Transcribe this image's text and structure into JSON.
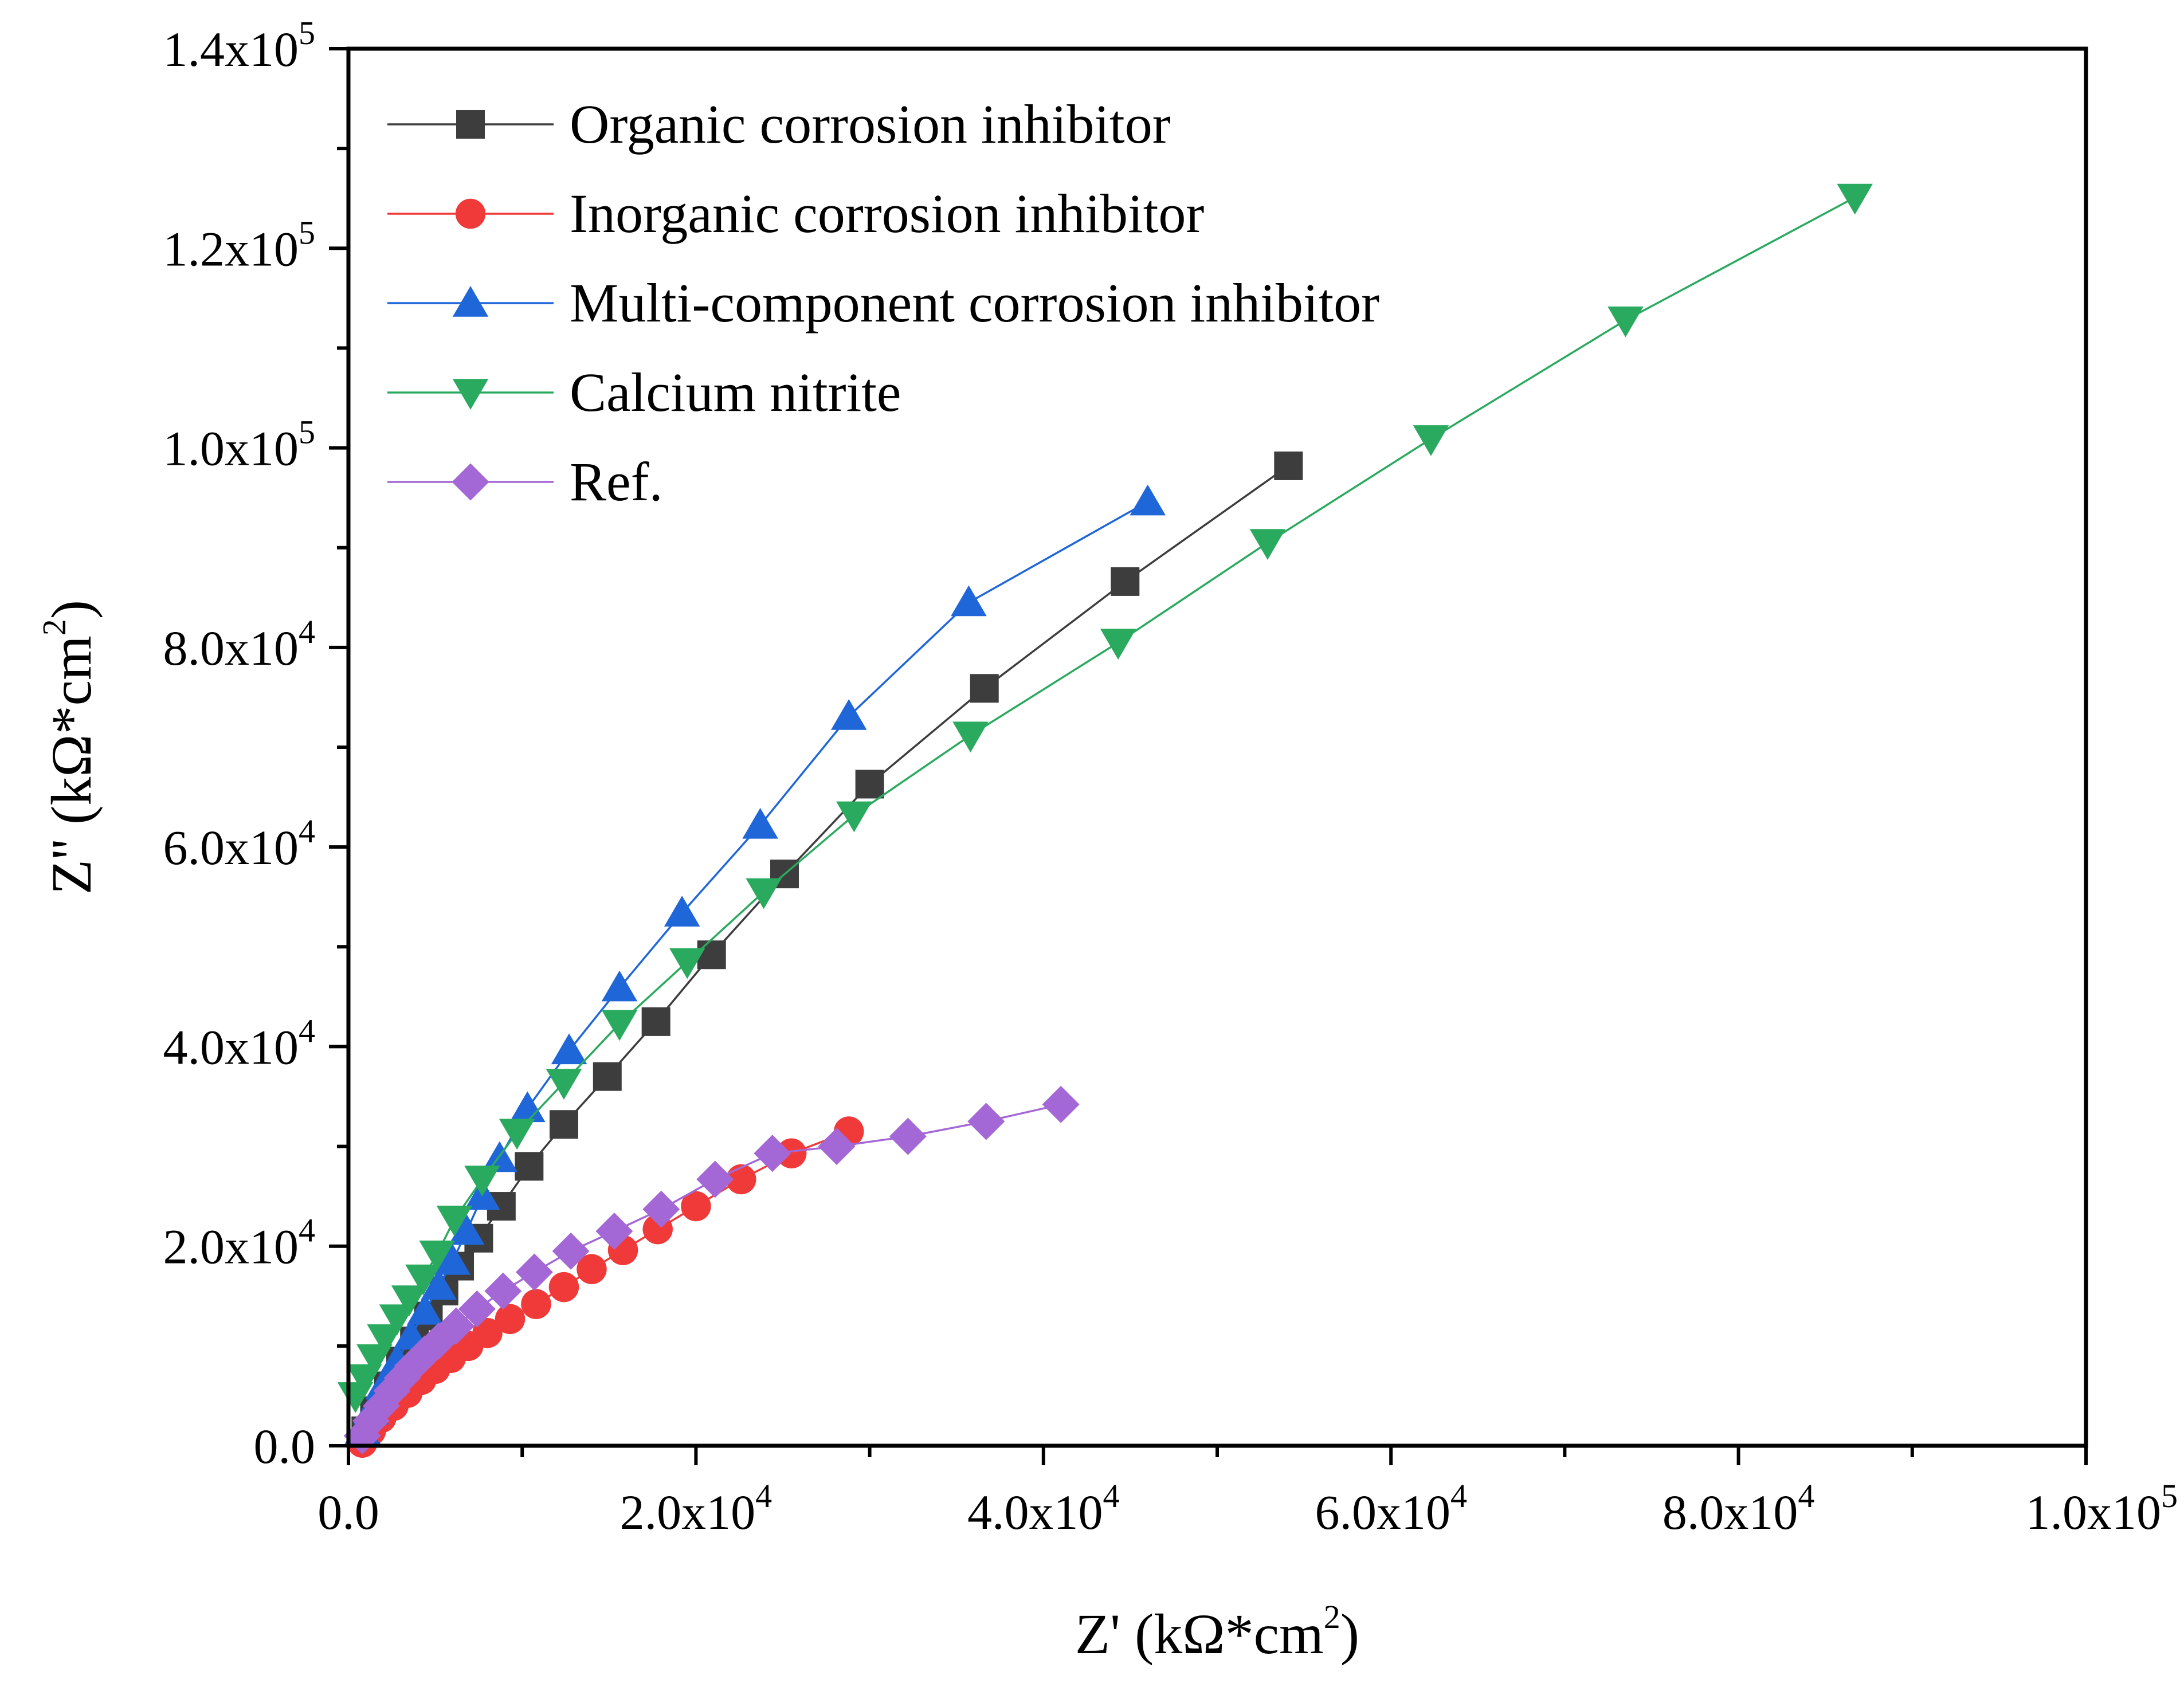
{
  "chart_data": {
    "type": "scatter",
    "title": "",
    "xlabel": {
      "prefix": "Z' (kΩ*cm",
      "sup": "2",
      "suffix": ")"
    },
    "ylabel": {
      "prefix": "Z'' (kΩ*cm",
      "sup": "2",
      "suffix": ")"
    },
    "xlim": [
      0,
      100000
    ],
    "ylim": [
      0,
      140000
    ],
    "grid": false,
    "legend_position": "top-left",
    "x_ticks": [
      {
        "value": 0,
        "mantissa": "0.0",
        "exp": ""
      },
      {
        "value": 20000,
        "mantissa": "2.0x10",
        "exp": "4"
      },
      {
        "value": 40000,
        "mantissa": "4.0x10",
        "exp": "4"
      },
      {
        "value": 60000,
        "mantissa": "6.0x10",
        "exp": "4"
      },
      {
        "value": 80000,
        "mantissa": "8.0x10",
        "exp": "4"
      },
      {
        "value": 100000,
        "mantissa": "1.0x10",
        "exp": "5"
      }
    ],
    "y_ticks": [
      {
        "value": 0,
        "mantissa": "0.0",
        "exp": ""
      },
      {
        "value": 20000,
        "mantissa": "2.0x10",
        "exp": "4"
      },
      {
        "value": 40000,
        "mantissa": "4.0x10",
        "exp": "4"
      },
      {
        "value": 60000,
        "mantissa": "6.0x10",
        "exp": "4"
      },
      {
        "value": 80000,
        "mantissa": "8.0x10",
        "exp": "4"
      },
      {
        "value": 100000,
        "mantissa": "1.0x10",
        "exp": "5"
      },
      {
        "value": 120000,
        "mantissa": "1.2x10",
        "exp": "5"
      },
      {
        "value": 140000,
        "mantissa": "1.4x10",
        "exp": "5"
      }
    ],
    "series": [
      {
        "name": "Organic corrosion inhibitor",
        "color": "#3d3d3d",
        "marker": "square",
        "points": [
          [
            1000,
            1500
          ],
          [
            1500,
            3500
          ],
          [
            2300,
            6000
          ],
          [
            3000,
            8500
          ],
          [
            3800,
            10500
          ],
          [
            4600,
            13000
          ],
          [
            5500,
            15500
          ],
          [
            6400,
            18000
          ],
          [
            7500,
            20800
          ],
          [
            8800,
            24000
          ],
          [
            10400,
            28000
          ],
          [
            12400,
            32200
          ],
          [
            14900,
            37000
          ],
          [
            17700,
            42500
          ],
          [
            20900,
            49200
          ],
          [
            25100,
            57300
          ],
          [
            30000,
            66300
          ],
          [
            36600,
            75900
          ],
          [
            44700,
            86600
          ],
          [
            54100,
            98200
          ]
        ]
      },
      {
        "name": "Inorganic corrosion inhibitor",
        "color": "#f03a3a",
        "marker": "circle",
        "points": [
          [
            800,
            300
          ],
          [
            1300,
            1500
          ],
          [
            1900,
            2800
          ],
          [
            2600,
            4000
          ],
          [
            3400,
            5300
          ],
          [
            4200,
            6600
          ],
          [
            5000,
            7700
          ],
          [
            5900,
            8800
          ],
          [
            6900,
            10000
          ],
          [
            8000,
            11300
          ],
          [
            9300,
            12700
          ],
          [
            10800,
            14200
          ],
          [
            12400,
            15900
          ],
          [
            14000,
            17700
          ],
          [
            15800,
            19600
          ],
          [
            17800,
            21700
          ],
          [
            20000,
            24000
          ],
          [
            22600,
            26700
          ],
          [
            25500,
            29300
          ],
          [
            28800,
            31500
          ]
        ]
      },
      {
        "name": "Multi-component corrosion inhibitor",
        "color": "#1f66d9",
        "marker": "triangle-up",
        "points": [
          [
            800,
            1500
          ],
          [
            1300,
            3500
          ],
          [
            2000,
            6000
          ],
          [
            2800,
            8500
          ],
          [
            3600,
            11000
          ],
          [
            4400,
            13500
          ],
          [
            5200,
            16000
          ],
          [
            6000,
            18500
          ],
          [
            6800,
            21500
          ],
          [
            7700,
            25000
          ],
          [
            8700,
            28800
          ],
          [
            10300,
            33800
          ],
          [
            12700,
            39600
          ],
          [
            15600,
            45900
          ],
          [
            19200,
            53400
          ],
          [
            23700,
            62200
          ],
          [
            28800,
            73100
          ],
          [
            35700,
            84500
          ],
          [
            46000,
            94600
          ]
        ]
      },
      {
        "name": "Calcium nitrite",
        "color": "#2aaa5e",
        "marker": "triangle-down",
        "points": [
          [
            400,
            5000
          ],
          [
            900,
            6800
          ],
          [
            1500,
            8800
          ],
          [
            2100,
            10800
          ],
          [
            2800,
            12800
          ],
          [
            3500,
            14700
          ],
          [
            4300,
            16800
          ],
          [
            5100,
            19200
          ],
          [
            6100,
            22700
          ],
          [
            7700,
            26700
          ],
          [
            9700,
            31400
          ],
          [
            12400,
            36400
          ],
          [
            15600,
            42300
          ],
          [
            19500,
            48500
          ],
          [
            23900,
            55500
          ],
          [
            29100,
            63200
          ],
          [
            35800,
            71200
          ],
          [
            44300,
            80500
          ],
          [
            52900,
            90500
          ],
          [
            62300,
            100900
          ],
          [
            73500,
            112800
          ],
          [
            86700,
            125100
          ]
        ]
      },
      {
        "name": "Ref.",
        "color": "#a368d6",
        "marker": "diamond",
        "points": [
          [
            800,
            1000
          ],
          [
            1300,
            2500
          ],
          [
            1900,
            4000
          ],
          [
            2500,
            5500
          ],
          [
            3100,
            6800
          ],
          [
            3700,
            8000
          ],
          [
            4400,
            9200
          ],
          [
            5200,
            10500
          ],
          [
            6200,
            12000
          ],
          [
            7400,
            13700
          ],
          [
            8900,
            15500
          ],
          [
            10700,
            17400
          ],
          [
            12800,
            19500
          ],
          [
            15300,
            21500
          ],
          [
            18000,
            23700
          ],
          [
            21100,
            26700
          ],
          [
            24400,
            29300
          ],
          [
            28100,
            30000
          ],
          [
            32200,
            31000
          ],
          [
            36700,
            32500
          ],
          [
            41000,
            34200
          ]
        ]
      }
    ]
  }
}
